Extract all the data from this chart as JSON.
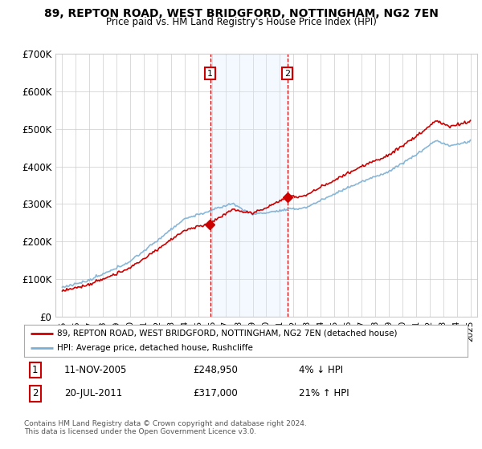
{
  "title": "89, REPTON ROAD, WEST BRIDGFORD, NOTTINGHAM, NG2 7EN",
  "subtitle": "Price paid vs. HM Land Registry's House Price Index (HPI)",
  "legend_property": "89, REPTON ROAD, WEST BRIDGFORD, NOTTINGHAM, NG2 7EN (detached house)",
  "legend_hpi": "HPI: Average price, detached house, Rushcliffe",
  "sale1_date": "11-NOV-2005",
  "sale1_price": 248950,
  "sale1_label": "1",
  "sale1_pct": "4% ↓ HPI",
  "sale2_date": "20-JUL-2011",
  "sale2_price": 317000,
  "sale2_label": "2",
  "sale2_pct": "21% ↑ HPI",
  "footer": "Contains HM Land Registry data © Crown copyright and database right 2024.\nThis data is licensed under the Open Government Licence v3.0.",
  "red_color": "#cc0000",
  "blue_color": "#7bafd4",
  "shade_color": "#ddeeff",
  "grid_color": "#cccccc",
  "ylim": [
    0,
    700000
  ],
  "yticks": [
    0,
    100000,
    200000,
    300000,
    400000,
    500000,
    600000,
    700000
  ],
  "ytick_labels": [
    "£0",
    "£100K",
    "£200K",
    "£300K",
    "£400K",
    "£500K",
    "£600K",
    "£700K"
  ],
  "sale1_x": 2005.87,
  "sale2_x": 2011.55,
  "xlim_left": 1994.5,
  "xlim_right": 2025.5
}
